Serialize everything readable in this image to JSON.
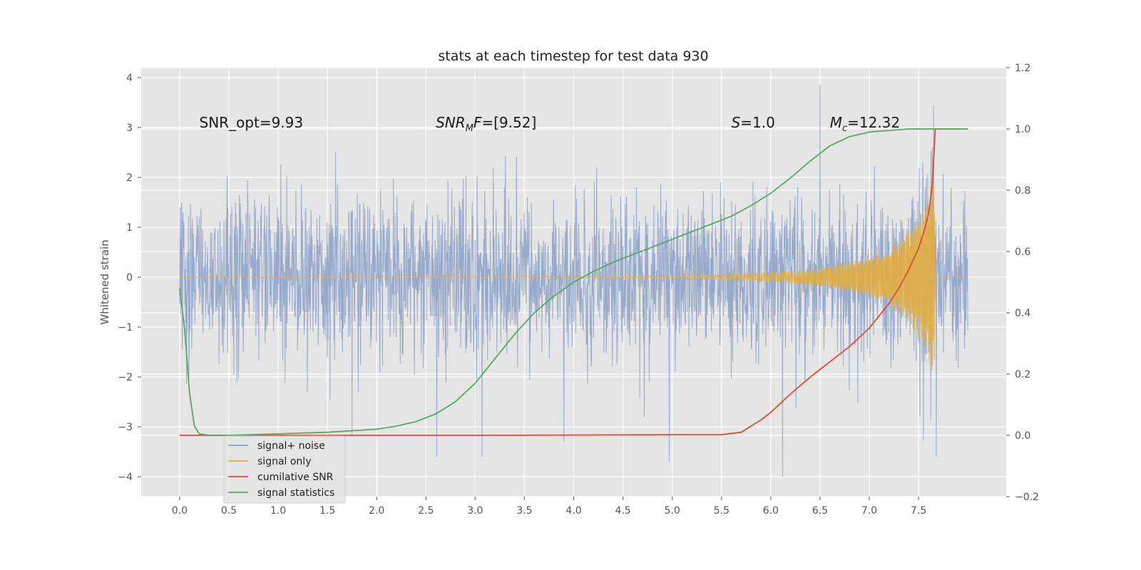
{
  "chart_data": {
    "type": "line",
    "title": "stats at each timestep for test data 930",
    "xlabel": "",
    "ylabel": "Whitened strain",
    "y2label": "",
    "xlim": [
      -0.39,
      8.39
    ],
    "ylim": [
      -4.4,
      4.2
    ],
    "y2lim": [
      -0.2,
      1.2
    ],
    "grid": true,
    "background": "#e5e5e5",
    "x_ticks": [
      "0.0",
      "0.5",
      "1.0",
      "1.5",
      "2.0",
      "2.5",
      "3.0",
      "3.5",
      "4.0",
      "4.5",
      "5.0",
      "5.5",
      "6.0",
      "6.5",
      "7.0",
      "7.5"
    ],
    "y_ticks": [
      "−4",
      "−3",
      "−2",
      "−1",
      "0",
      "1",
      "2",
      "3",
      "4"
    ],
    "y2_ticks": [
      "−0.2",
      "0.0",
      "0.2",
      "0.4",
      "0.6",
      "0.8",
      "1.0",
      "1.2"
    ],
    "annotations": [
      {
        "text": "SNR_opt=9.93",
        "x": 0.2,
        "y": 3.0
      },
      {
        "text": "SNR_MF=[9.52]",
        "x": 2.6,
        "y": 3.0
      },
      {
        "text": "S=1.0",
        "x": 5.6,
        "y": 3.0
      },
      {
        "text": "M_c=12.32",
        "x": 6.6,
        "y": 3.0
      }
    ],
    "legend": {
      "position": "lower-left",
      "entries": [
        "signal+ noise",
        "signal only",
        "cumilative SNR",
        "signal statistics"
      ]
    },
    "series": [
      {
        "name": "signal+ noise",
        "axis": "left",
        "color": "#8ea3c9",
        "kind": "noise",
        "x_range": [
          0.0,
          8.0
        ],
        "sigma": 1.0,
        "notable_peaks": [
          [
            6.5,
            3.85
          ],
          [
            6.12,
            -4.0
          ],
          [
            4.97,
            -3.7
          ],
          [
            3.07,
            -3.6
          ],
          [
            2.61,
            -3.6
          ],
          [
            7.68,
            -3.6
          ],
          [
            3.9,
            -3.3
          ],
          [
            1.75,
            -3.2
          ]
        ]
      },
      {
        "name": "signal only",
        "axis": "left",
        "color": "#e5ae38",
        "kind": "chirp",
        "x_range": [
          0.0,
          7.67
        ],
        "amplitude_envelope": [
          [
            0.0,
            0.01
          ],
          [
            4.0,
            0.02
          ],
          [
            5.0,
            0.03
          ],
          [
            5.5,
            0.05
          ],
          [
            6.0,
            0.09
          ],
          [
            6.5,
            0.17
          ],
          [
            7.0,
            0.38
          ],
          [
            7.2,
            0.55
          ],
          [
            7.4,
            0.9
          ],
          [
            7.55,
            1.35
          ],
          [
            7.62,
            1.8
          ],
          [
            7.66,
            2.0
          ],
          [
            7.67,
            0.0
          ]
        ]
      },
      {
        "name": "cumilative SNR",
        "axis": "right",
        "color": "#e24a33",
        "x": [
          0.0,
          0.5,
          1.0,
          2.0,
          3.0,
          4.0,
          5.0,
          5.5,
          5.7,
          5.8,
          5.9,
          6.0,
          6.1,
          6.2,
          6.4,
          6.6,
          6.8,
          7.0,
          7.1,
          7.2,
          7.3,
          7.4,
          7.5,
          7.55,
          7.6,
          7.64,
          7.67,
          7.7,
          8.0
        ],
        "values": [
          0.0,
          0.0,
          0.0,
          0.0,
          0.0,
          0.001,
          0.002,
          0.002,
          0.01,
          0.03,
          0.05,
          0.075,
          0.105,
          0.135,
          0.19,
          0.24,
          0.29,
          0.35,
          0.39,
          0.43,
          0.48,
          0.54,
          0.61,
          0.66,
          0.72,
          0.82,
          1.0,
          1.0,
          1.0
        ]
      },
      {
        "name": "signal statistics",
        "axis": "right",
        "color": "#55a868",
        "x": [
          0.0,
          0.05,
          0.1,
          0.15,
          0.2,
          0.3,
          0.5,
          1.0,
          1.5,
          2.0,
          2.2,
          2.4,
          2.6,
          2.8,
          3.0,
          3.2,
          3.4,
          3.6,
          3.8,
          4.0,
          4.2,
          4.4,
          4.6,
          4.8,
          5.0,
          5.2,
          5.4,
          5.6,
          5.8,
          6.0,
          6.2,
          6.4,
          6.6,
          6.8,
          7.0,
          7.2,
          7.4,
          7.5,
          7.7,
          8.0
        ],
        "values": [
          0.48,
          0.35,
          0.14,
          0.03,
          0.005,
          0.0,
          0.0,
          0.005,
          0.01,
          0.02,
          0.03,
          0.045,
          0.07,
          0.11,
          0.17,
          0.25,
          0.33,
          0.4,
          0.455,
          0.5,
          0.535,
          0.565,
          0.59,
          0.615,
          0.64,
          0.665,
          0.69,
          0.715,
          0.75,
          0.79,
          0.84,
          0.895,
          0.945,
          0.975,
          0.99,
          0.995,
          1.0,
          1.0,
          1.0,
          1.0
        ]
      }
    ]
  }
}
